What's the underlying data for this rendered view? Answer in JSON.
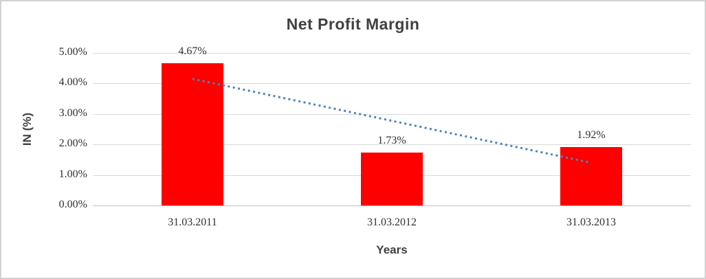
{
  "chart_data": {
    "type": "bar",
    "title": "Net Profit Margin",
    "xlabel": "Years",
    "ylabel": "IN (%)",
    "categories": [
      "31.03.2011",
      "31.03.2012",
      "31.03.2013"
    ],
    "values": [
      4.67,
      1.73,
      1.92
    ],
    "data_labels": [
      "4.67%",
      "1.73%",
      "1.92%"
    ],
    "yticks": [
      "5.00%",
      "4.00%",
      "3.00%",
      "2.00%",
      "1.00%",
      "0.00%"
    ],
    "ylim": [
      0,
      5
    ],
    "grid": true,
    "legend": "none",
    "bar_color": "#ff0000",
    "gridline_color": "#d9d9d9",
    "axis_line_color": "#bfbfbf",
    "text_color": "#303030",
    "title_color": "#404040",
    "trendline": {
      "style": "dotted",
      "color": "#4f81bd",
      "from_value": 4.15,
      "to_value": 1.4
    }
  }
}
